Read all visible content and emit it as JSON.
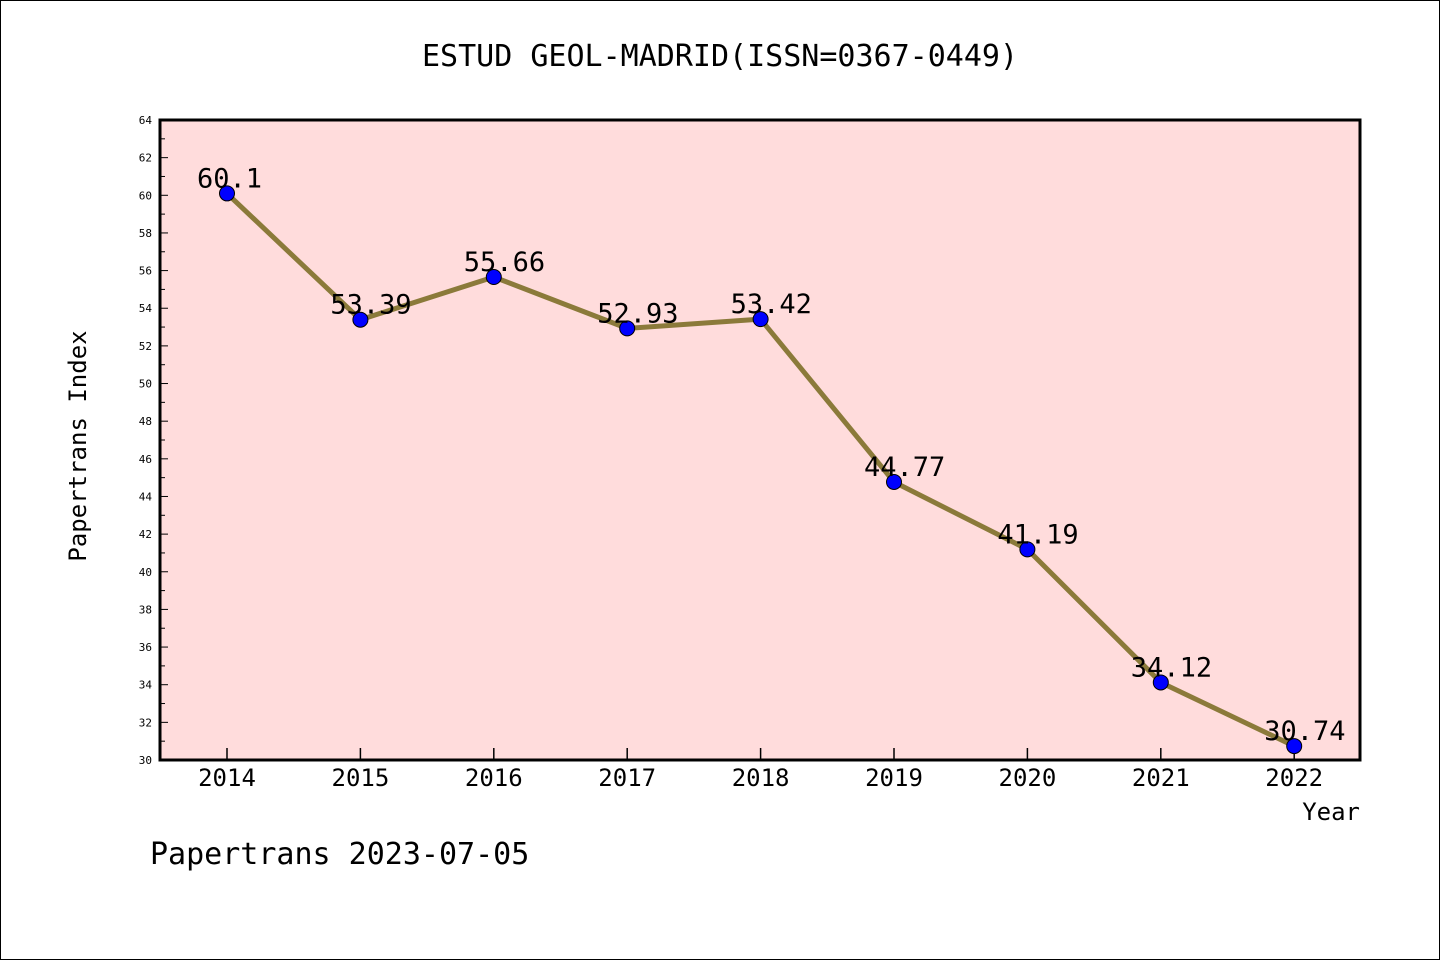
{
  "chart_data": {
    "type": "line",
    "title": "ESTUD GEOL-MADRID(ISSN=0367-0449)",
    "xlabel": "Year",
    "ylabel": "Papertrans Index",
    "categories": [
      "2014",
      "2015",
      "2016",
      "2017",
      "2018",
      "2019",
      "2020",
      "2021",
      "2022"
    ],
    "series": [
      {
        "values": [
          60.1,
          53.39,
          55.66,
          52.93,
          53.42,
          44.77,
          41.19,
          34.12,
          30.74
        ],
        "labels": [
          "60.1",
          "53.39",
          "55.66",
          "52.93",
          "53.42",
          "44.77",
          "41.19",
          "34.12",
          "30.74"
        ],
        "line_color": "#8b7a3a",
        "marker_color": "#0000ff"
      }
    ],
    "ylim": [
      30,
      64
    ],
    "yticks": [
      30,
      32,
      34,
      36,
      38,
      40,
      42,
      44,
      46,
      48,
      50,
      52,
      54,
      56,
      58,
      60,
      62,
      64
    ],
    "plot_background": "#ffdcdc",
    "grid": false,
    "legend": false
  },
  "footer": "Papertrans 2023-07-05"
}
